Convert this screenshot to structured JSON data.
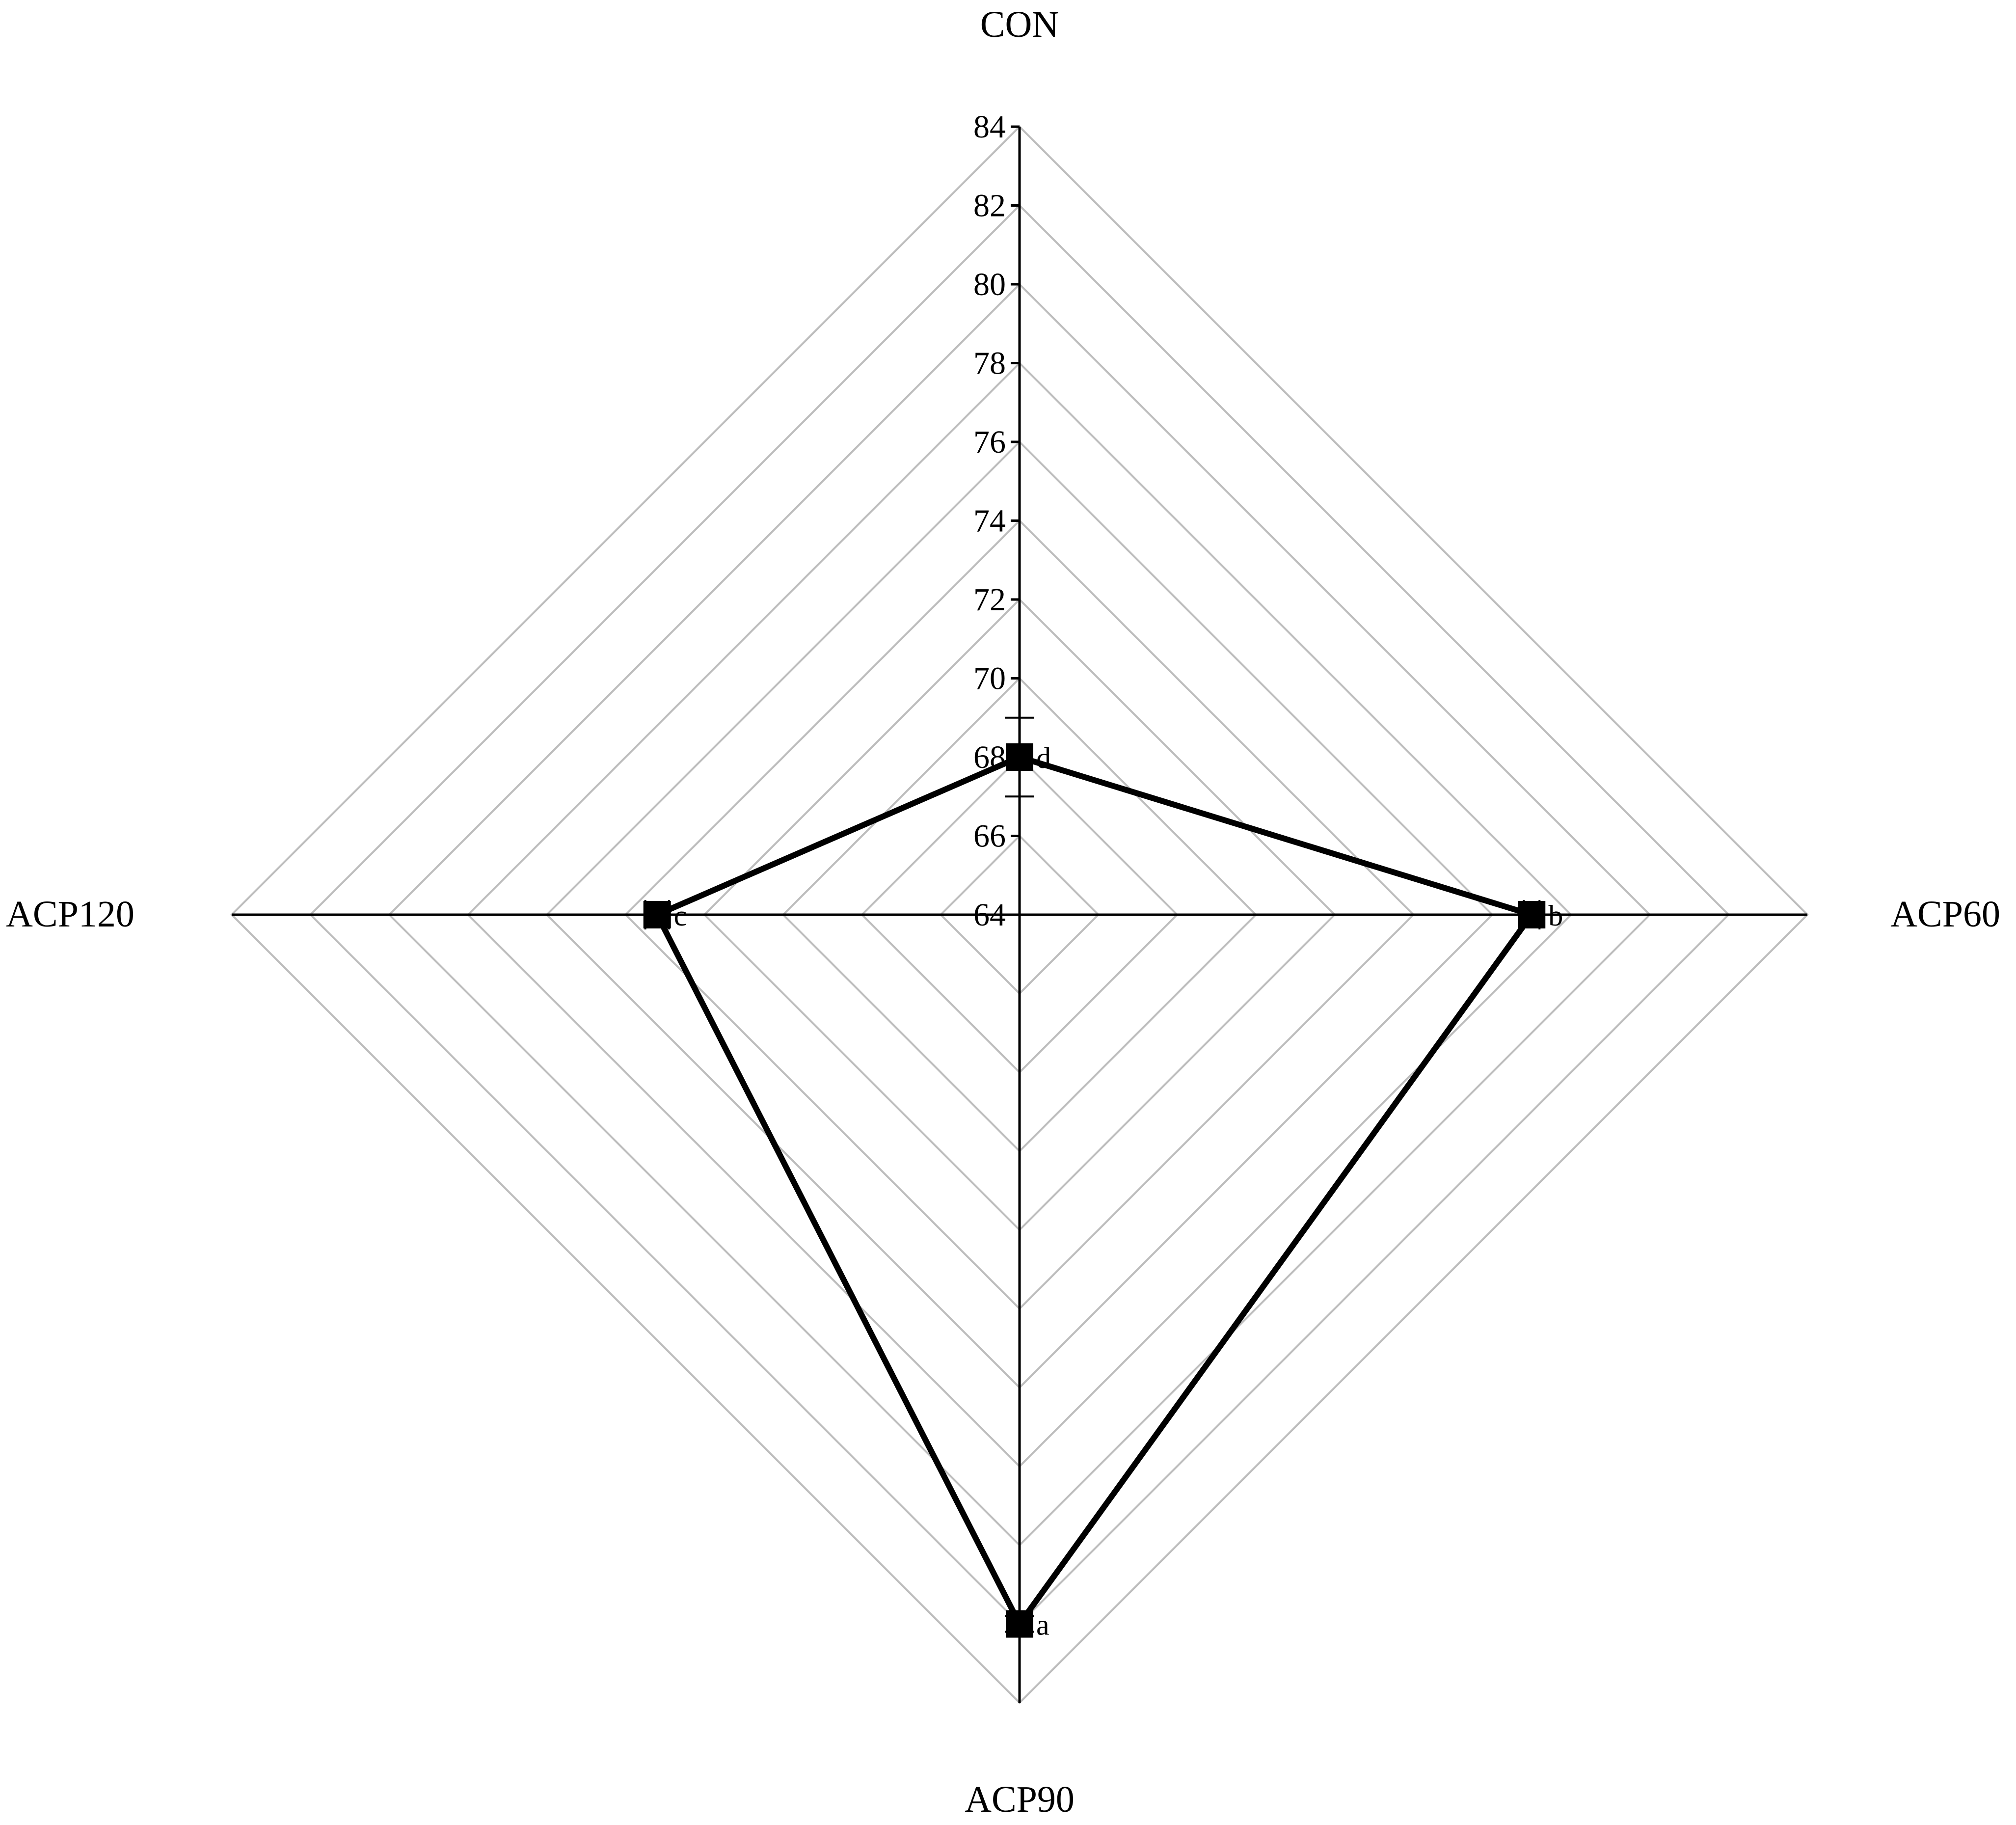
{
  "chart_data": {
    "type": "radar",
    "axes": [
      "CON",
      "ACP60",
      "ACP90",
      "ACP120"
    ],
    "rlim": [
      64,
      84
    ],
    "ticks": [
      64,
      66,
      68,
      70,
      72,
      74,
      76,
      78,
      80,
      82,
      84
    ],
    "tick_labels": [
      "64",
      "66",
      "68",
      "70",
      "72",
      "74",
      "76",
      "78",
      "80",
      "82",
      "84"
    ],
    "values": [
      68.0,
      77.0,
      82.0,
      73.2
    ],
    "error_bars": [
      1.0,
      0.2,
      0.2,
      0.3
    ],
    "significance": [
      "d",
      "b",
      "a",
      "c"
    ],
    "grid": true,
    "colors": {
      "series": "#000000",
      "grid": "#bdbdbd",
      "axis": "#000000"
    }
  }
}
